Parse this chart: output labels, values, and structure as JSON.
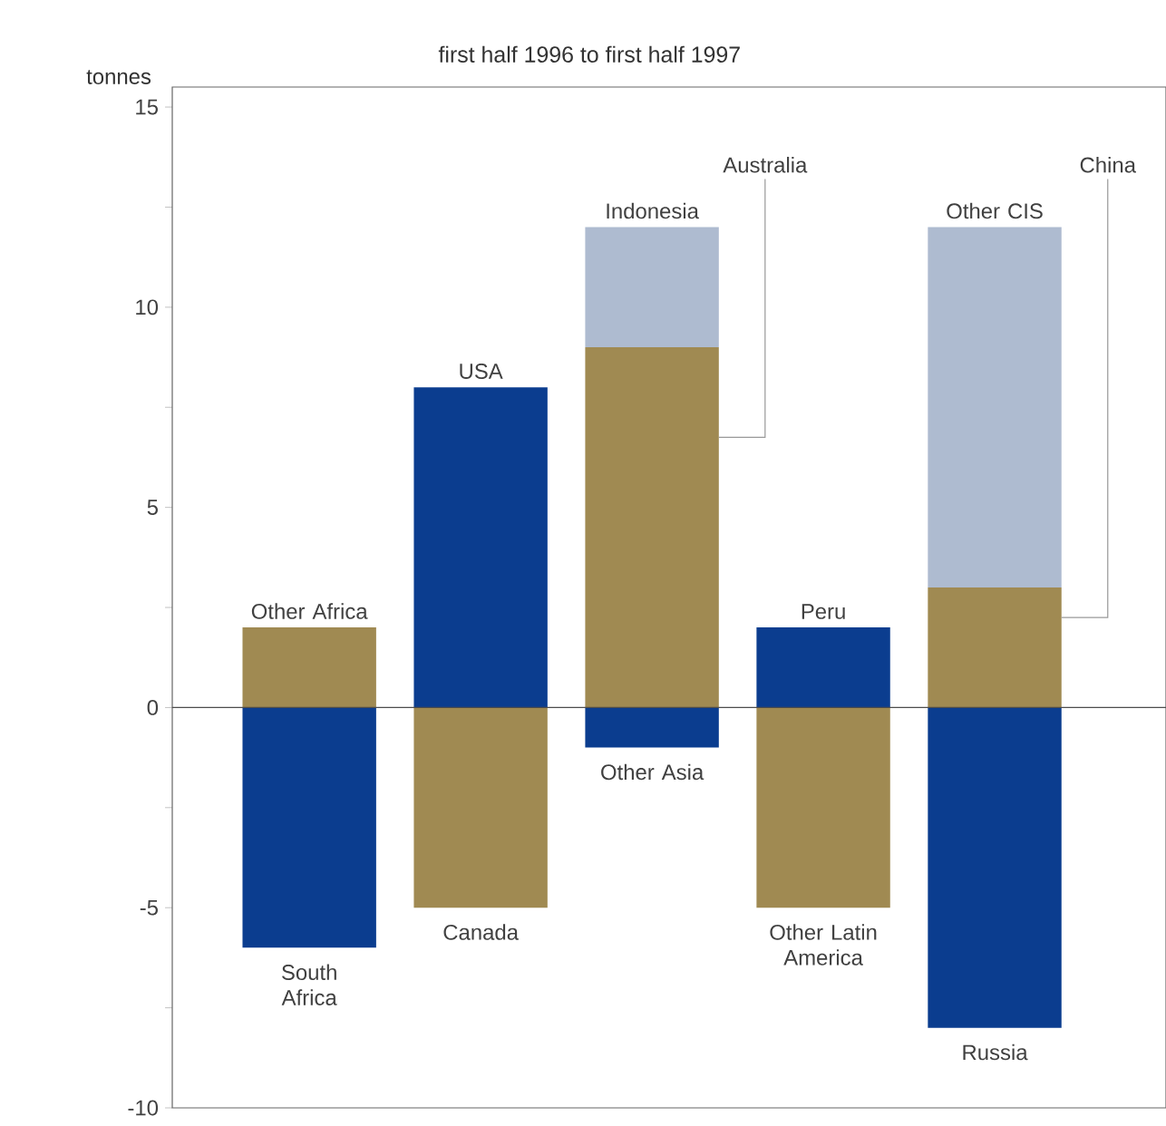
{
  "chart_data": {
    "type": "bar",
    "title": "first half 1996 to first half 1997",
    "ylabel": "tonnes",
    "categories": [
      null,
      null,
      null,
      null,
      null
    ],
    "stacked": true,
    "ylim": [
      -10,
      15.5
    ],
    "yticks": [
      -10,
      {
        "value": -7.5,
        "label": null
      },
      -5,
      {
        "value": -2.5,
        "label": null
      },
      0,
      {
        "value": 2.5,
        "label": null
      },
      5,
      {
        "value": 7.5,
        "label": null
      },
      10,
      {
        "value": 12.5,
        "label": null
      },
      15
    ],
    "ref_lines": [
      {
        "axis": "y",
        "value": 0
      }
    ],
    "series": [
      {
        "name": "Other Africa",
        "color": "#a08a52",
        "values": [
          2,
          null,
          null,
          null,
          null
        ]
      },
      {
        "name": "South Africa",
        "color": "#0b3d8f",
        "values": [
          -6,
          null,
          null,
          null,
          null
        ]
      },
      {
        "name": "USA",
        "color": "#0b3d8f",
        "values": [
          null,
          8,
          null,
          null,
          null
        ]
      },
      {
        "name": "Canada",
        "color": "#a08a52",
        "values": [
          null,
          -5,
          null,
          null,
          null
        ]
      },
      {
        "name": "Australia",
        "color": "#a08a52",
        "values": [
          null,
          null,
          9,
          null,
          null
        ]
      },
      {
        "name": "Indonesia",
        "color": "#aebbd0",
        "values": [
          null,
          null,
          3,
          null,
          null
        ]
      },
      {
        "name": "Other Asia",
        "color": "#0b3d8f",
        "values": [
          null,
          null,
          -1,
          null,
          null
        ]
      },
      {
        "name": "Peru",
        "color": "#0b3d8f",
        "values": [
          null,
          null,
          null,
          2,
          null
        ]
      },
      {
        "name": "Other Latin America",
        "color": "#a08a52",
        "values": [
          null,
          null,
          null,
          -5,
          null
        ]
      },
      {
        "name": "China",
        "color": "#a08a52",
        "values": [
          null,
          null,
          null,
          null,
          3
        ]
      },
      {
        "name": "Other CIS",
        "color": "#aebbd0",
        "values": [
          null,
          null,
          null,
          null,
          9
        ]
      },
      {
        "name": "Russia",
        "color": "#0b3d8f",
        "values": [
          null,
          null,
          null,
          null,
          -8
        ]
      }
    ]
  }
}
